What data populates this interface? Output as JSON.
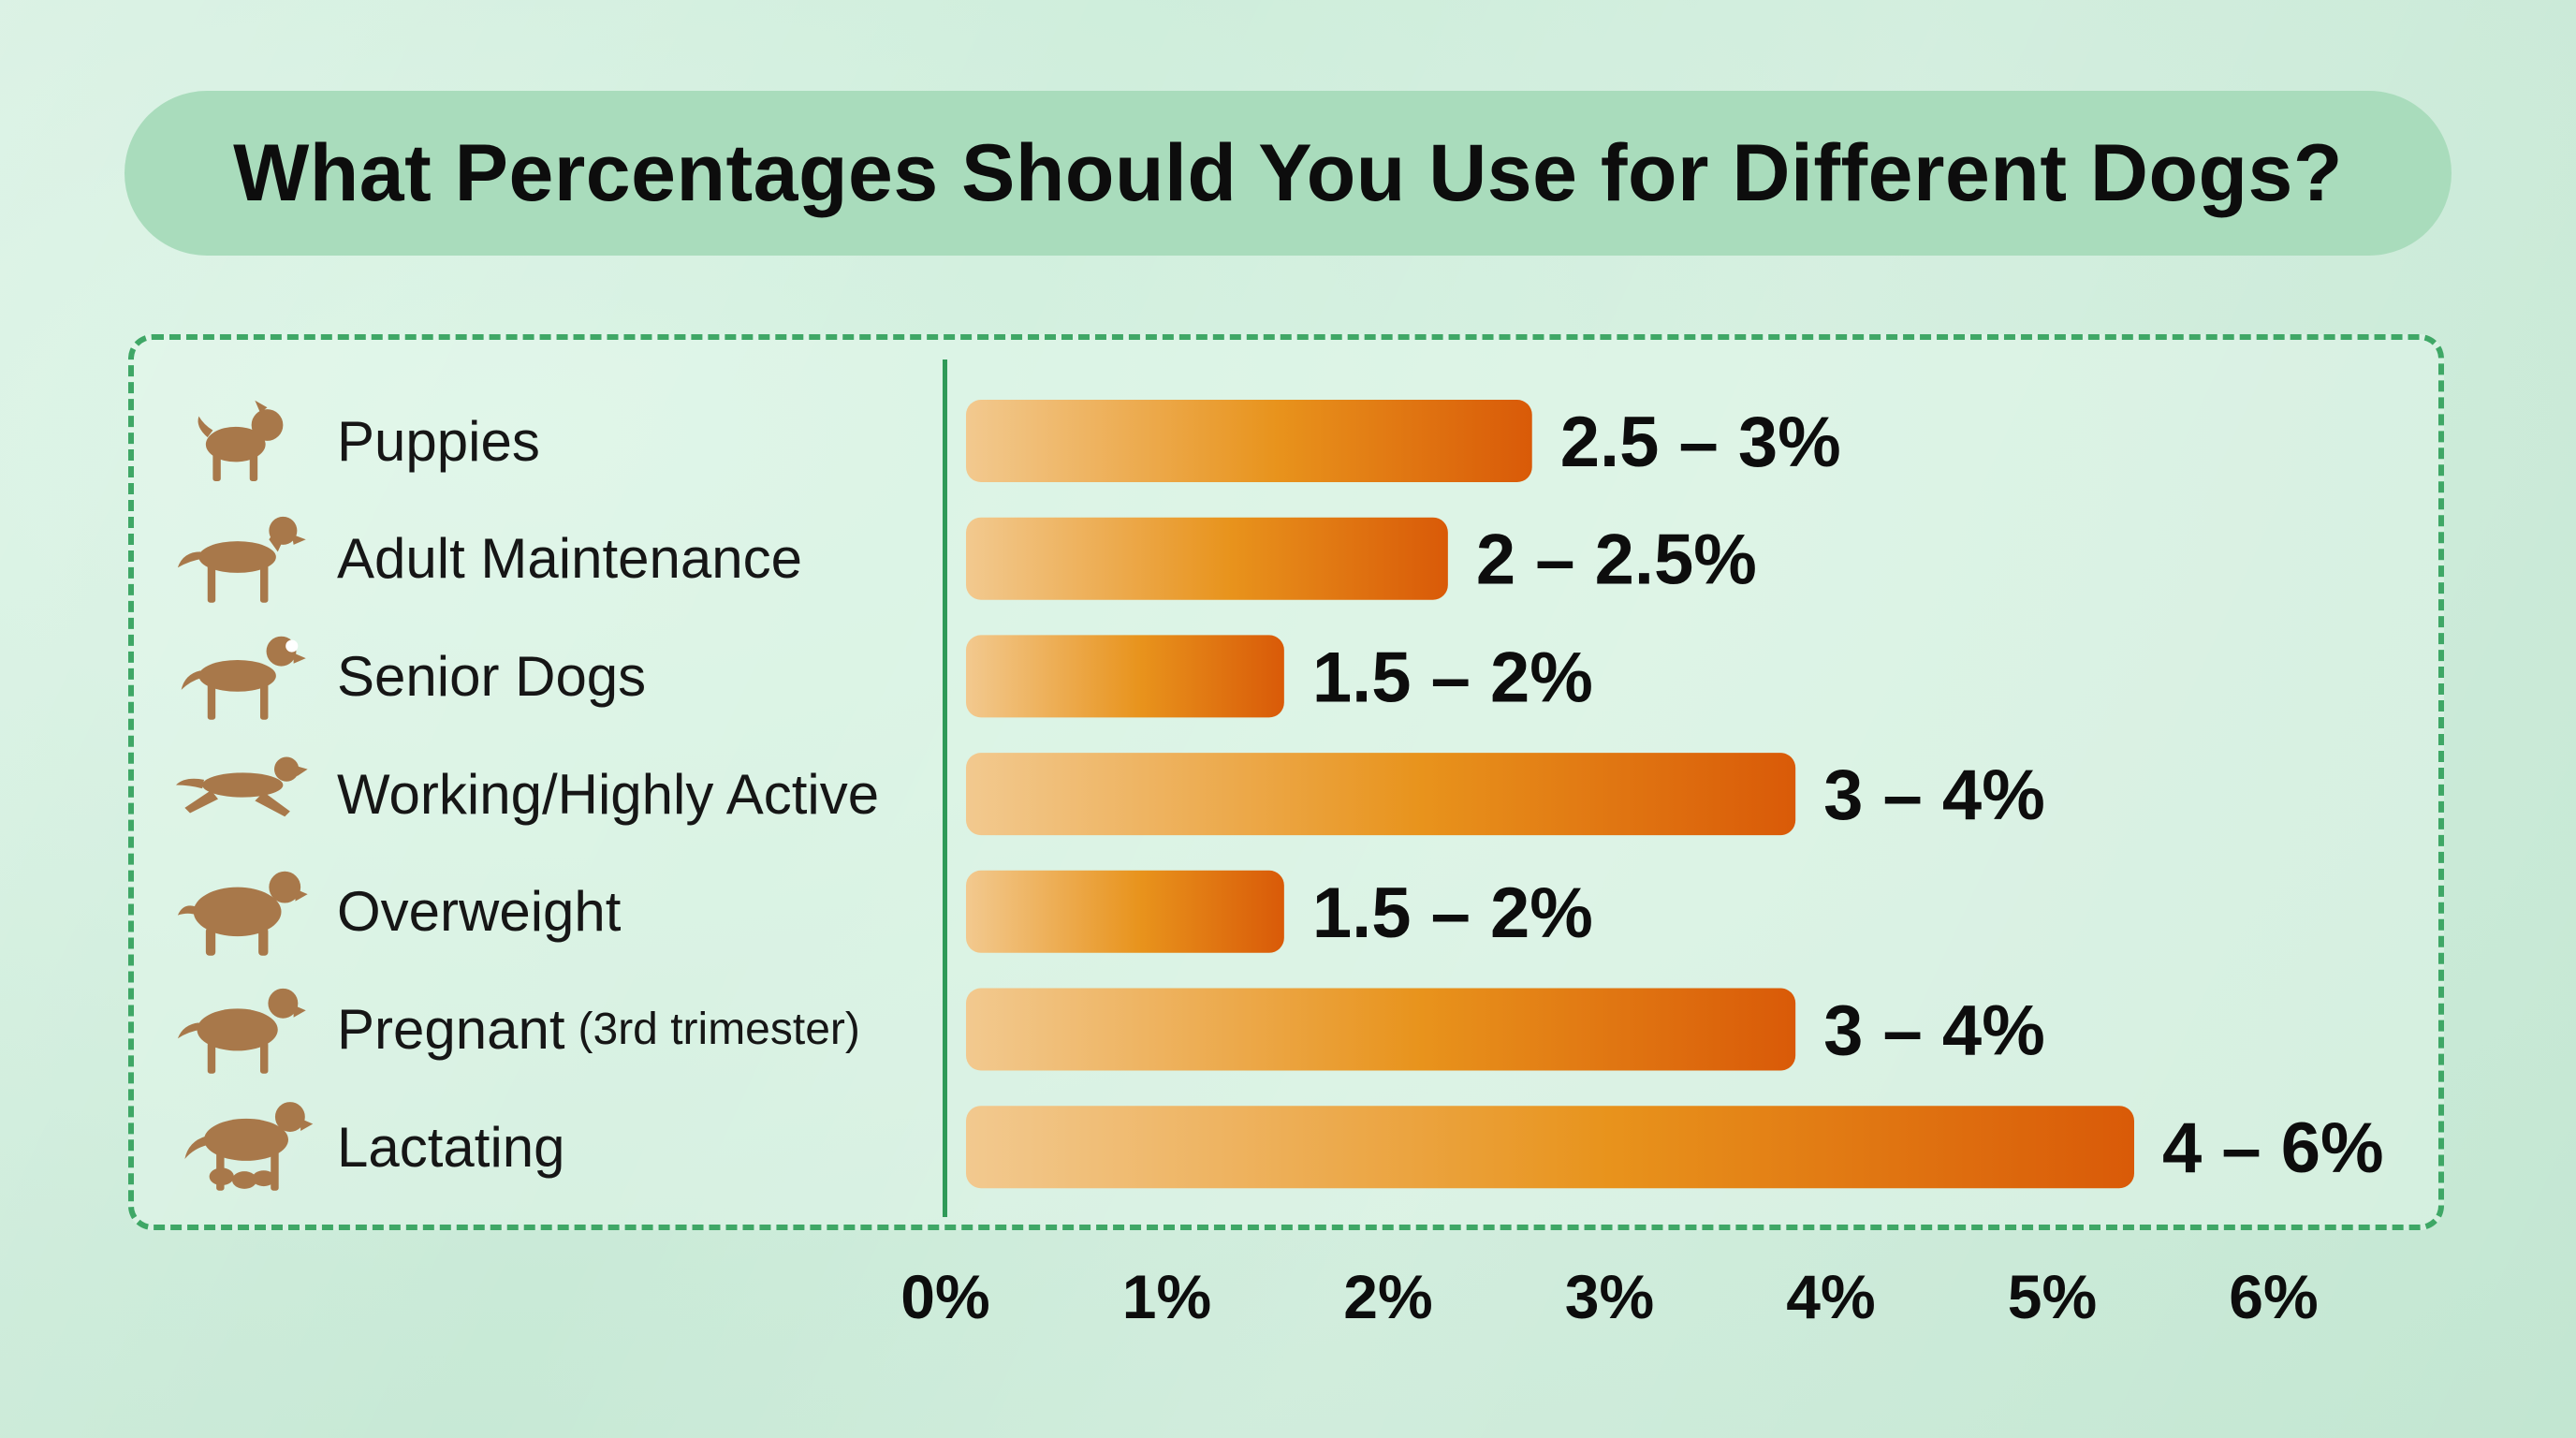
{
  "colors": {
    "background": "#cfeedd",
    "title_pill": "#a9dcbc",
    "frame_border": "#3fa766",
    "bar_start": "#f2c98f",
    "bar_mid": "#e8931c",
    "bar_end": "#d95a08",
    "dog_icon": "#a8784a"
  },
  "chart_data": {
    "type": "bar",
    "orientation": "horizontal",
    "title": "What Percentages Should You Use for Different Dogs?",
    "xlabel": "",
    "ylabel": "",
    "xlim": [
      0,
      6
    ],
    "x_ticks": [
      0,
      1,
      2,
      3,
      4,
      5,
      6
    ],
    "x_tick_labels": [
      "0%",
      "1%",
      "2%",
      "3%",
      "4%",
      "5%",
      "6%"
    ],
    "grid": false,
    "categories": [
      {
        "label": "Puppies",
        "sub": "",
        "icon": "puppy-icon"
      },
      {
        "label": "Adult Maintenance",
        "sub": "",
        "icon": "adult-dog-icon"
      },
      {
        "label": "Senior Dogs",
        "sub": "",
        "icon": "senior-dog-icon"
      },
      {
        "label": "Working/Highly Active",
        "sub": "",
        "icon": "running-dog-icon"
      },
      {
        "label": "Overweight",
        "sub": "",
        "icon": "overweight-dog-icon"
      },
      {
        "label": "Pregnant",
        "sub": "(3rd trimester)",
        "icon": "pregnant-dog-icon"
      },
      {
        "label": "Lactating",
        "sub": "",
        "icon": "lactating-dog-icon"
      }
    ],
    "values": [
      2.65,
      2.27,
      1.53,
      3.84,
      1.53,
      3.84,
      5.37
    ],
    "value_labels": [
      "2.5 – 3%",
      "2 – 2.5%",
      "1.5 – 2%",
      "3 – 4%",
      "1.5 – 2%",
      "3 – 4%",
      "4 – 6%"
    ]
  }
}
